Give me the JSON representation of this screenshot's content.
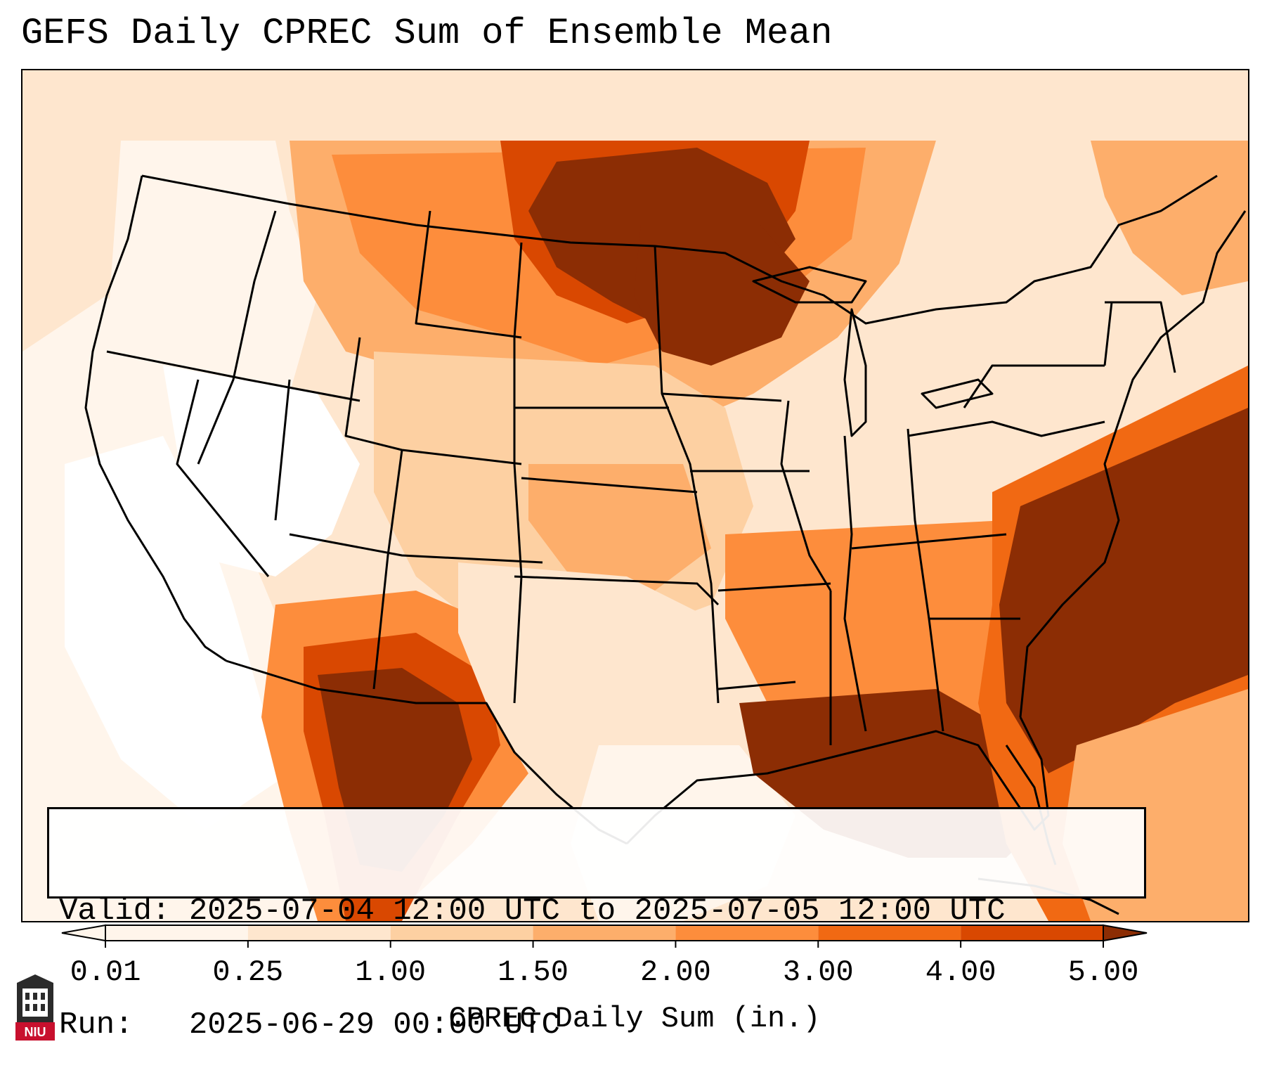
{
  "title": "GEFS Daily CPREC Sum of Ensemble Mean",
  "valid": {
    "label": "Valid:",
    "value": "2025-07-04 12:00 UTC to 2025-07-05 12:00 UTC"
  },
  "run": {
    "label": "Run:",
    "value": "2025-06-29 00:00 UTC"
  },
  "colorbar": {
    "label": "CPREC Daily Sum (in.)",
    "ticks": [
      "0.01",
      "0.25",
      "1.00",
      "1.50",
      "2.00",
      "3.00",
      "4.00",
      "5.00"
    ],
    "colors": [
      "#fff5eb",
      "#fee6ce",
      "#fdd0a2",
      "#fdae6b",
      "#fd8d3c",
      "#f16913",
      "#d94801",
      "#8c2d04"
    ],
    "extend": "both"
  },
  "logo": {
    "text": "NIU",
    "colors": {
      "red": "#c8102e",
      "dark": "#2b2b2b"
    }
  },
  "map": {
    "projection": "Lambert conformal over contiguous United States",
    "ocean_color": "#ffffff",
    "boundary_color": "#000000"
  }
}
